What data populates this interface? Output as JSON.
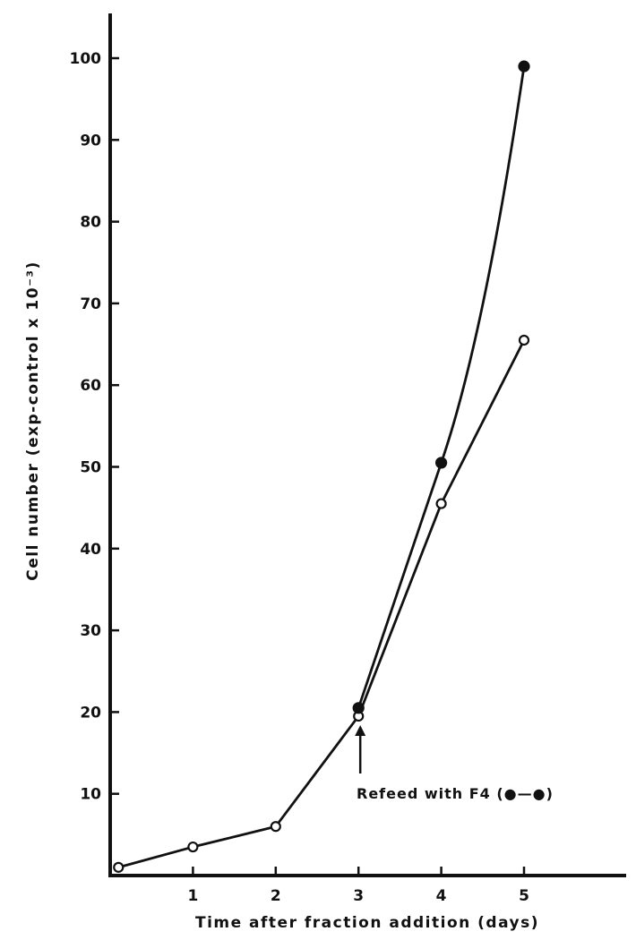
{
  "chart_data": {
    "type": "line",
    "xlabel": "Time after fraction addition (days)",
    "ylabel": "Cell number (exp-control x 10⁻³)",
    "xlim": [
      0,
      6.3
    ],
    "ylim": [
      0,
      105
    ],
    "x_ticks": [
      1,
      2,
      3,
      4,
      5
    ],
    "y_ticks": [
      10,
      20,
      30,
      40,
      50,
      60,
      70,
      80,
      90,
      100
    ],
    "grid": false,
    "series": [
      {
        "marker": "open-circle",
        "x": [
          0.1,
          1,
          2,
          3,
          4,
          5
        ],
        "y": [
          1,
          3.5,
          6,
          19.5,
          45.5,
          65.5
        ]
      },
      {
        "marker": "filled-circle",
        "x": [
          3,
          4,
          5
        ],
        "y": [
          20.5,
          50.5,
          99
        ]
      }
    ],
    "annotation": {
      "text": "Refeed with F4 (●—●)",
      "x": 3,
      "arrow": "up"
    }
  }
}
